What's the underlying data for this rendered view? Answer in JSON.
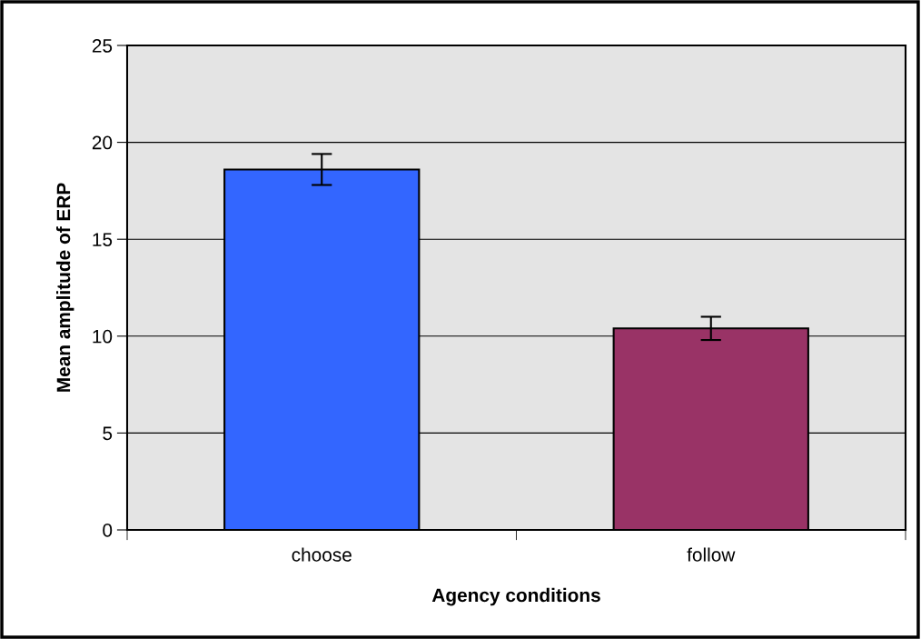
{
  "chart_data": {
    "type": "bar",
    "xlabel": "Agency conditions",
    "ylabel": "Mean amplitude of ERP",
    "categories": [
      "choose",
      "follow"
    ],
    "values": [
      18.6,
      10.4
    ],
    "colors": [
      "#3366ff",
      "#993366"
    ],
    "errors": [
      0.8,
      0.6
    ],
    "ylim": [
      0,
      25
    ],
    "yticks": [
      0,
      5,
      10,
      15,
      20,
      25
    ],
    "grid": "y",
    "legend": false
  }
}
